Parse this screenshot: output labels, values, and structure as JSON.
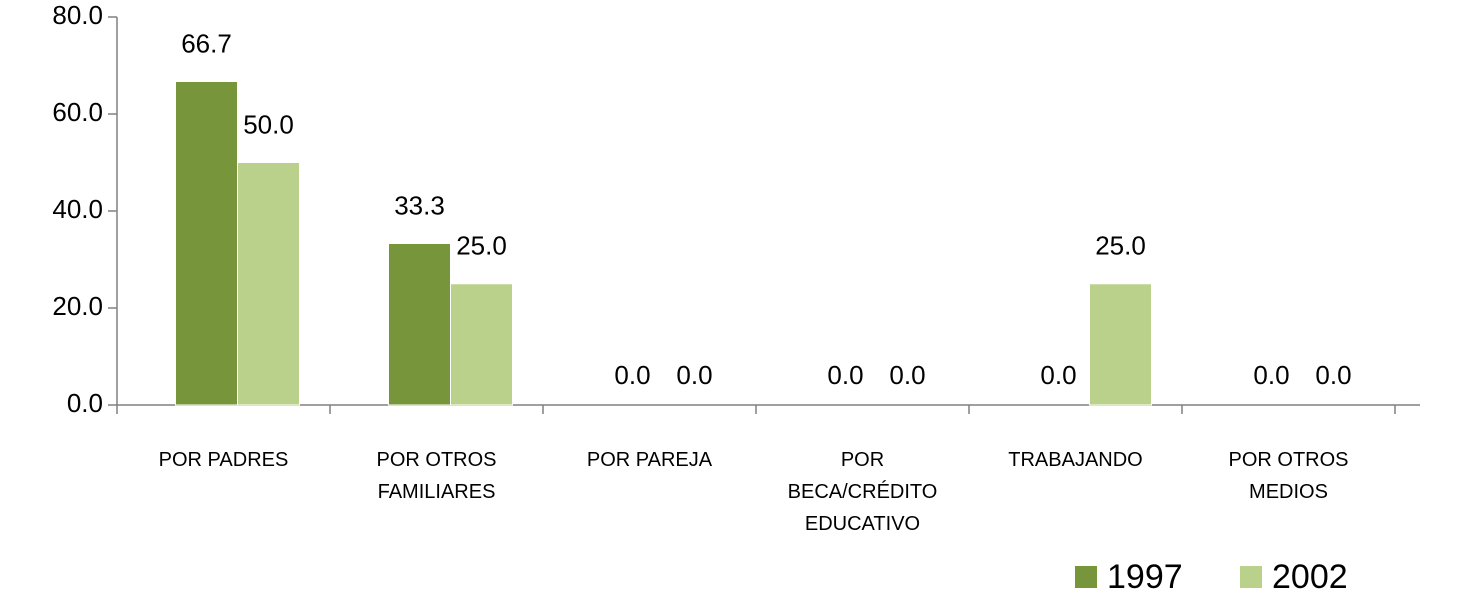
{
  "chart_data": {
    "type": "bar",
    "categories": [
      "POR PADRES",
      "POR OTROS FAMILIARES",
      "POR PAREJA",
      "POR BECA/CRÉDITO EDUCATIVO",
      "TRABAJANDO",
      "POR OTROS MEDIOS"
    ],
    "series": [
      {
        "name": "1997",
        "color": "#77963c",
        "values": [
          66.7,
          33.3,
          0,
          0,
          0,
          0
        ],
        "value_labels": [
          "66.7",
          "33.3",
          "0.0",
          "0.0",
          "0.0",
          "0.0"
        ]
      },
      {
        "name": "2002",
        "color": "#b9d18a",
        "values": [
          50,
          25,
          0,
          0,
          25,
          0
        ],
        "value_labels": [
          "50.0",
          "25.0",
          "0.0",
          "0.0",
          "25.0",
          "0.0"
        ]
      }
    ],
    "ylim": [
      0,
      80
    ],
    "yticks": [
      {
        "value": 0,
        "label": "0.0"
      },
      {
        "value": 20,
        "label": "20.0"
      },
      {
        "value": 40,
        "label": "40.0"
      },
      {
        "value": 60,
        "label": "60.0"
      },
      {
        "value": 80,
        "label": "80.0"
      }
    ],
    "legend": "bottom-right"
  }
}
